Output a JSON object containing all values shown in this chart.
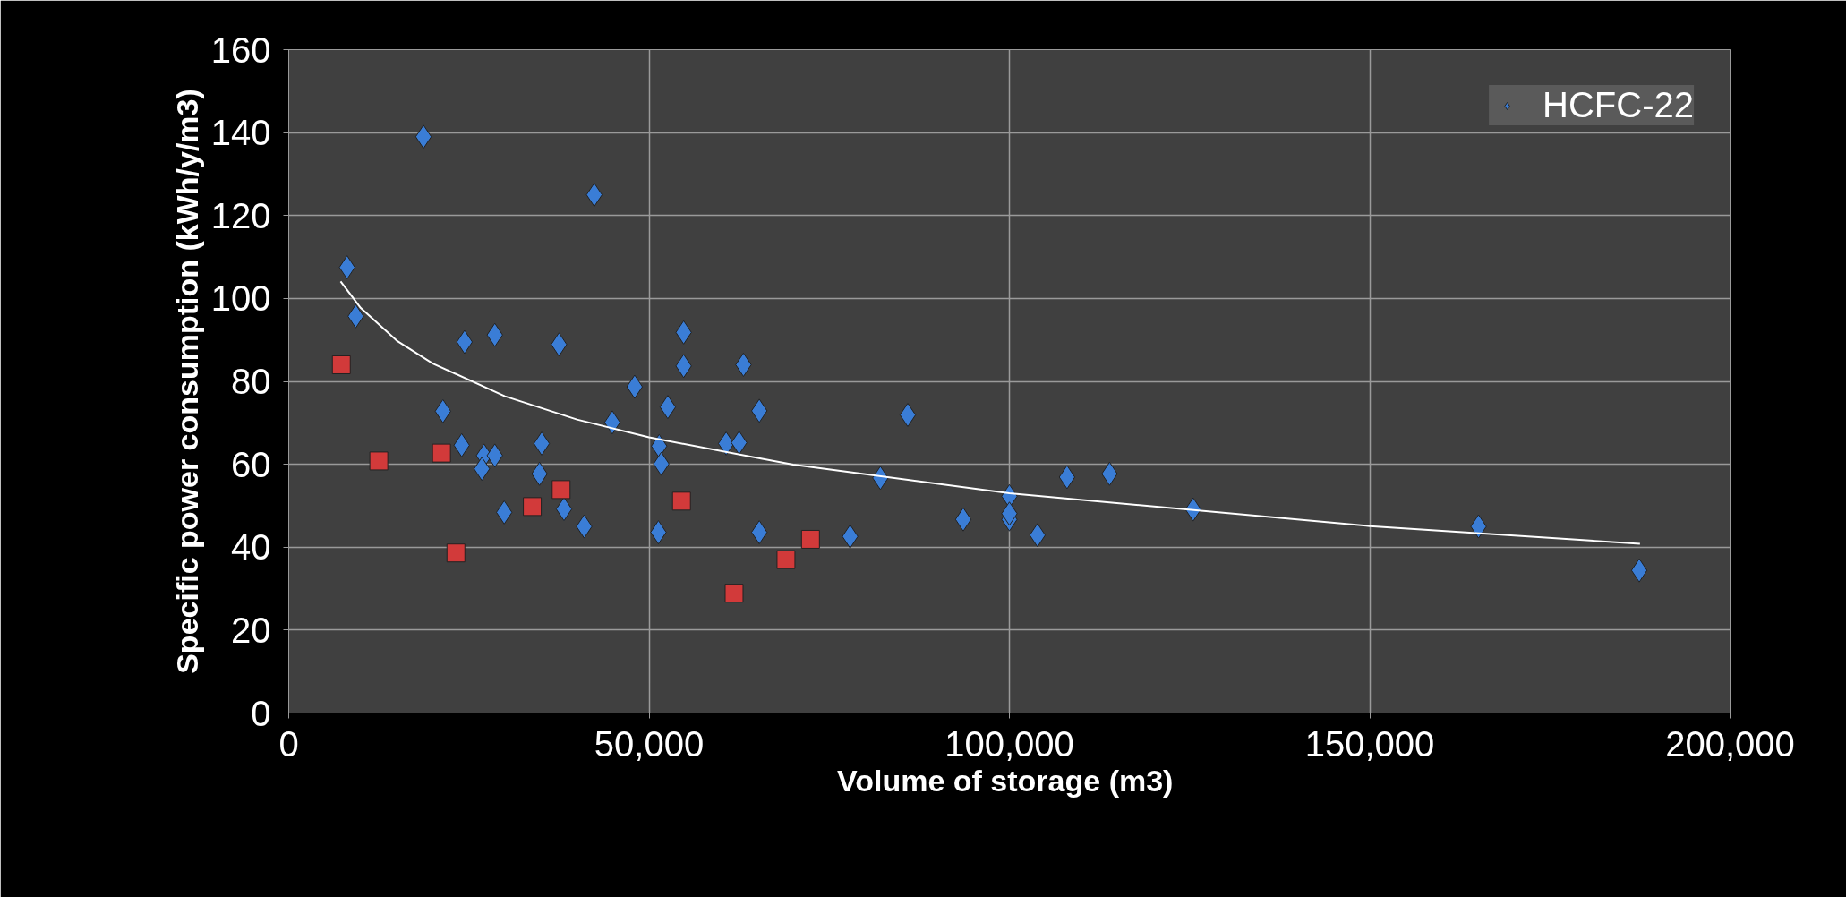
{
  "chart_data": {
    "type": "scatter",
    "xlabel": "Volume of storage  (m3)",
    "ylabel": "Specific power consumption (kWh/y/m3)",
    "xlim": [
      0,
      200000
    ],
    "ylim": [
      0,
      160
    ],
    "xticks": [
      0,
      {
        "value": 50000,
        "label": "50,000"
      },
      {
        "value": 100000,
        "label": "100,000"
      },
      {
        "value": 150000,
        "label": "150,000"
      },
      {
        "value": 200000,
        "label": "200,000"
      }
    ],
    "yticks": [
      0,
      20,
      40,
      60,
      80,
      100,
      120,
      140,
      160
    ],
    "grid": true,
    "legend": "top right",
    "series": [
      {
        "name": "HCFC-22",
        "color": "#3a7dd6",
        "marker": "diamond",
        "x": [
          8100,
          9300,
          18700,
          42400,
          24400,
          28600,
          37500,
          54800,
          54800,
          63100,
          48000,
          52600,
          65300,
          21400,
          44900,
          24000,
          35100,
          27100,
          28600,
          26800,
          34800,
          51400,
          51700,
          60700,
          62500,
          29900,
          38200,
          41000,
          51300,
          65300,
          85900,
          82100,
          77900,
          93600,
          100000,
          100000,
          103900,
          108000,
          113900,
          125500,
          165100,
          187400,
          100000
        ],
        "values": [
          107.5,
          95.7,
          139.0,
          125.0,
          89.5,
          91.2,
          88.9,
          91.8,
          83.7,
          84.0,
          78.7,
          73.8,
          72.9,
          72.8,
          70.1,
          64.6,
          65.0,
          62.1,
          62.1,
          58.9,
          57.7,
          64.4,
          60.1,
          65.0,
          65.2,
          48.4,
          49.2,
          45.0,
          43.6,
          43.6,
          71.9,
          56.7,
          42.6,
          46.7,
          52.3,
          46.7,
          42.9,
          56.9,
          57.7,
          49.1,
          45.0,
          34.4,
          48.1
        ]
      },
      {
        "color": "#d23a3a",
        "marker": "square",
        "x": [
          7300,
          12500,
          21200,
          23200,
          33800,
          37800,
          54500,
          61800,
          69000,
          72400
        ],
        "values": [
          84.0,
          60.8,
          62.7,
          38.6,
          49.8,
          53.9,
          51.1,
          28.9,
          37.0,
          41.9
        ]
      },
      {
        "type": "line",
        "color": "#ffffff",
        "marker": "none",
        "line_style": "solid",
        "x": [
          7200,
          10000,
          15000,
          20000,
          30000,
          40000,
          50000,
          70000,
          100000,
          150000,
          187500
        ],
        "values": [
          104.1,
          97.7,
          89.8,
          84.3,
          76.4,
          70.8,
          66.5,
          59.9,
          53.0,
          45.1,
          40.8
        ]
      }
    ]
  }
}
